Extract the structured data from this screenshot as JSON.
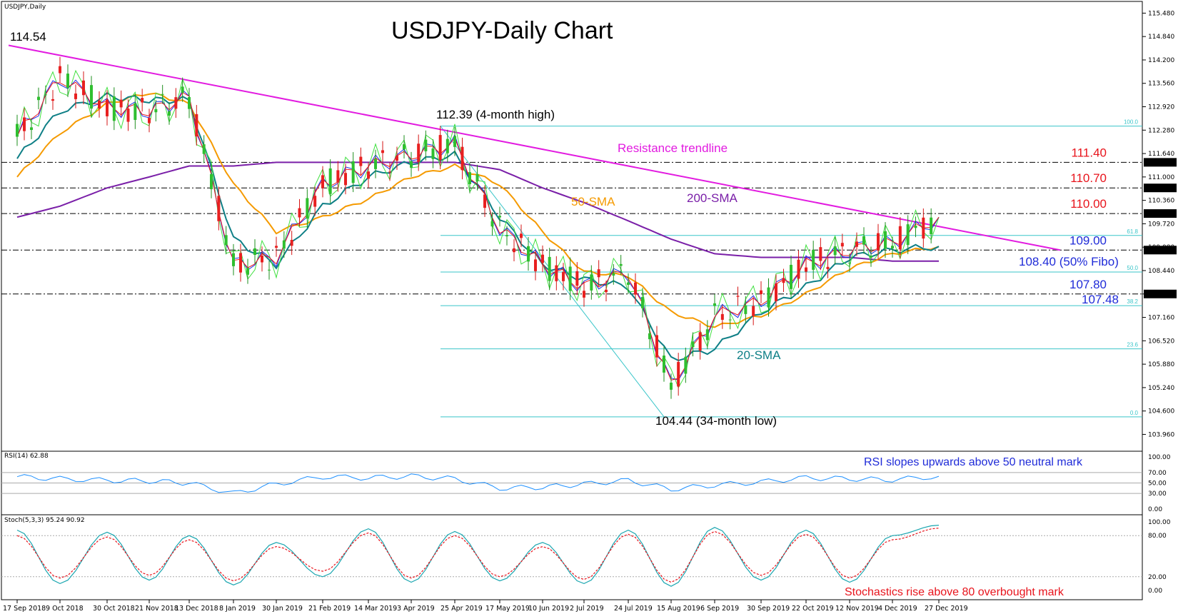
{
  "chart_data": [
    {
      "type": "line",
      "name": "main",
      "symbol_label": "USDJPY,Daily",
      "title": "USDJPY-Daily Chart",
      "ylim": [
        103.5,
        115.8
      ],
      "y_ticks": [
        115.48,
        114.84,
        114.2,
        113.56,
        112.92,
        112.28,
        111.64,
        111.0,
        110.36,
        109.72,
        109.08,
        108.44,
        107.8,
        107.16,
        106.52,
        105.88,
        105.24,
        104.6,
        103.96
      ],
      "x_ticks": [
        "17 Sep 2018",
        "9 Oct 2018",
        "30 Oct 2018",
        "21 Nov 2018",
        "13 Dec 2018",
        "8 Jan 2019",
        "30 Jan 2019",
        "21 Feb 2019",
        "14 Mar 2019",
        "3 Apr 2019",
        "25 Apr 2019",
        "17 May 2019",
        "10 Jun 2019",
        "2 Jul 2019",
        "24 Jul 2019",
        "15 Aug 2019",
        "6 Sep 2019",
        "30 Sep 2019",
        "22 Oct 2019",
        "12 Nov 2019",
        "4 Dec 2019",
        "27 Dec 2019"
      ],
      "price_tags": [
        {
          "label": "111.400",
          "value": 111.4
        },
        {
          "label": "110.700",
          "value": 110.7
        },
        {
          "label": "110.000",
          "value": 110.0
        },
        {
          "label": "109.000",
          "value": 109.0
        },
        {
          "label": "107.800",
          "value": 107.8
        }
      ],
      "horizontal_levels": [
        {
          "value": 111.4,
          "label": "111.40",
          "color": "#e8141c"
        },
        {
          "value": 110.7,
          "label": "110.70",
          "color": "#e8141c"
        },
        {
          "value": 110.0,
          "label": "110.00",
          "color": "#e8141c"
        },
        {
          "value": 109.0,
          "label": "109.00",
          "color": "#1f2bd8"
        },
        {
          "value": 107.8,
          "label": "107.80",
          "color": "#1f2bd8"
        }
      ],
      "fibonacci": {
        "from_date": "25 Apr 2019",
        "high": 112.39,
        "low": 104.44,
        "levels": [
          {
            "pct": "100.0",
            "value": 112.39
          },
          {
            "pct": "61.8",
            "value": 109.4
          },
          {
            "pct": "50.0",
            "value": 108.4
          },
          {
            "pct": "38.2",
            "value": 107.48
          },
          {
            "pct": "23.6",
            "value": 106.3
          },
          {
            "pct": "0.0",
            "value": 104.44
          }
        ]
      },
      "annotations": {
        "high_2018": "114.54",
        "four_month_high": "112.39 (4-month high)",
        "resistance": "Resistance trendline",
        "sma50": "50-SMA",
        "sma200": "200-SMA",
        "sma20": "20-SMA",
        "fibo50": "108.40 (50% Fibo)",
        "level_10748": "107.48",
        "low": "104.44 (34-month low)"
      },
      "trendline": {
        "start": {
          "date": "17 Sep 2018",
          "value": 114.6
        },
        "end": {
          "date": "27 Dec 2019",
          "value": 109.2
        }
      },
      "close_series": {
        "dates": [
          "17 Sep 2018",
          "9 Oct 2018",
          "30 Oct 2018",
          "21 Nov 2018",
          "13 Dec 2018",
          "8 Jan 2019",
          "30 Jan 2019",
          "21 Feb 2019",
          "14 Mar 2019",
          "3 Apr 2019",
          "25 Apr 2019",
          "17 May 2019",
          "10 Jun 2019",
          "2 Jul 2019",
          "24 Jul 2019",
          "15 Aug 2019",
          "6 Sep 2019",
          "30 Sep 2019",
          "22 Oct 2019",
          "12 Nov 2019",
          "4 Dec 2019",
          "27 Dec 2019"
        ],
        "values": [
          112.1,
          113.7,
          112.9,
          112.8,
          113.2,
          108.6,
          108.8,
          110.8,
          111.3,
          111.6,
          111.9,
          109.6,
          108.6,
          108.0,
          108.4,
          105.3,
          107.2,
          107.6,
          108.6,
          109.0,
          109.2,
          109.9
        ]
      },
      "sma50": [
        111.0,
        112.2,
        113.0,
        113.3,
        113.0,
        110.8,
        109.5,
        109.9,
        110.4,
        111.0,
        111.3,
        110.8,
        109.5,
        108.4,
        108.3,
        107.3,
        106.9,
        107.2,
        107.8,
        108.5,
        108.9,
        109.1
      ],
      "sma200": [
        109.9,
        110.2,
        110.7,
        111.0,
        111.3,
        111.3,
        111.4,
        111.4,
        111.4,
        111.4,
        111.4,
        111.2,
        110.7,
        110.3,
        109.8,
        109.3,
        108.9,
        108.8,
        108.8,
        108.8,
        108.7,
        108.7
      ],
      "sma20": [
        111.5,
        112.8,
        113.2,
        113.1,
        113.1,
        109.3,
        108.6,
        110.2,
        111.0,
        111.4,
        111.6,
        109.9,
        108.6,
        108.2,
        108.0,
        106.0,
        106.3,
        107.3,
        108.0,
        108.8,
        109.0,
        109.1
      ]
    },
    {
      "type": "line",
      "name": "rsi",
      "label": "RSI(14) 62.88",
      "y_ticks": [
        100.0,
        70.0,
        50.0,
        30.0,
        0.0
      ],
      "ylim": [
        0,
        100
      ],
      "annotation": "RSI slopes upwards above 50 neutral mark",
      "values": [
        62,
        58,
        55,
        54,
        50,
        30,
        48,
        62,
        60,
        63,
        58,
        40,
        42,
        48,
        55,
        38,
        46,
        52,
        60,
        58,
        56,
        62.88
      ]
    },
    {
      "type": "line",
      "name": "stochastics",
      "label": "Stoch(5,3,3) 95.24 90.92",
      "y_ticks": [
        100.0,
        80.0,
        20.0,
        0.0
      ],
      "ylim": [
        0,
        100
      ],
      "annotation": "Stochastics rise above 80 overbought mark",
      "k_values": [
        88,
        10,
        85,
        15,
        80,
        8,
        70,
        20,
        90,
        12,
        86,
        14,
        70,
        10,
        88,
        6,
        92,
        15,
        88,
        12,
        80,
        95.24
      ],
      "d_values": [
        80,
        18,
        78,
        22,
        74,
        14,
        64,
        28,
        84,
        18,
        80,
        20,
        64,
        16,
        82,
        12,
        86,
        22,
        82,
        18,
        74,
        90.92
      ]
    }
  ]
}
